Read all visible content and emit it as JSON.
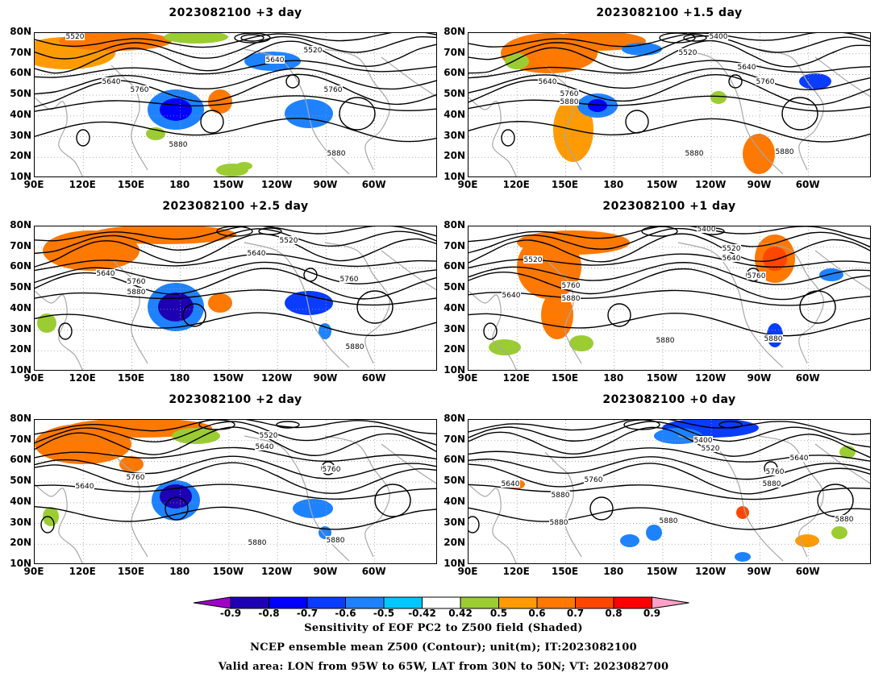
{
  "panels": [
    {
      "title": "2023082100 +3 day",
      "contour_labels": [
        "5520",
        "5520",
        "5640",
        "5640",
        "5760",
        "5760",
        "5880",
        "5880"
      ]
    },
    {
      "title": "2023082100 +1.5 day",
      "contour_labels": [
        "5400",
        "5520",
        "5640",
        "5640",
        "5760",
        "5760",
        "5880",
        "5880",
        "5880"
      ]
    },
    {
      "title": "2023082100 +2.5 day",
      "contour_labels": [
        "5520",
        "5640",
        "5640",
        "5760",
        "5760",
        "5880",
        "5880"
      ]
    },
    {
      "title": "2023082100 +1 day",
      "contour_labels": [
        "5400",
        "5520",
        "5520",
        "5640",
        "5640",
        "5760",
        "5760",
        "5880",
        "5880",
        "5880"
      ]
    },
    {
      "title": "2023082100 +2 day",
      "contour_labels": [
        "5520",
        "5640",
        "5640",
        "5760",
        "5760",
        "5880",
        "5880"
      ]
    },
    {
      "title": "2023082100 +0 day",
      "contour_labels": [
        "5400",
        "5520",
        "5640",
        "5640",
        "5760",
        "5760",
        "5880",
        "5880",
        "5880",
        "5880",
        "5880"
      ]
    }
  ],
  "lat_labels": [
    "80N",
    "70N",
    "60N",
    "50N",
    "40N",
    "30N",
    "20N",
    "10N"
  ],
  "lon_labels": [
    "90E",
    "120E",
    "150E",
    "180",
    "150W",
    "120W",
    "90W",
    "60W"
  ],
  "colorbar": {
    "colors": [
      "#a000c8",
      "#1e00b4",
      "#0000ff",
      "#0a3cff",
      "#1e82ff",
      "#00c8ff",
      "#ffffff",
      "#9bcd32",
      "#ff9b00",
      "#ff7800",
      "#ff4600",
      "#ff0000",
      "#ffa0c8"
    ],
    "tick_labels": [
      "-0.9",
      "-0.8",
      "-0.7",
      "-0.6",
      "-0.5",
      "-0.42",
      "0.42",
      "0.5",
      "0.6",
      "0.7",
      "0.8",
      "0.9"
    ]
  },
  "footer": {
    "line1": "Sensitivity of EOF PC2 to Z500 field (Shaded)",
    "line2": "NCEP ensemble mean Z500 (Contour); unit(m); IT:2023082100",
    "line3": "Valid area: LON from 95W to 65W, LAT from 30N to 50N; VT: 2023082700"
  }
}
